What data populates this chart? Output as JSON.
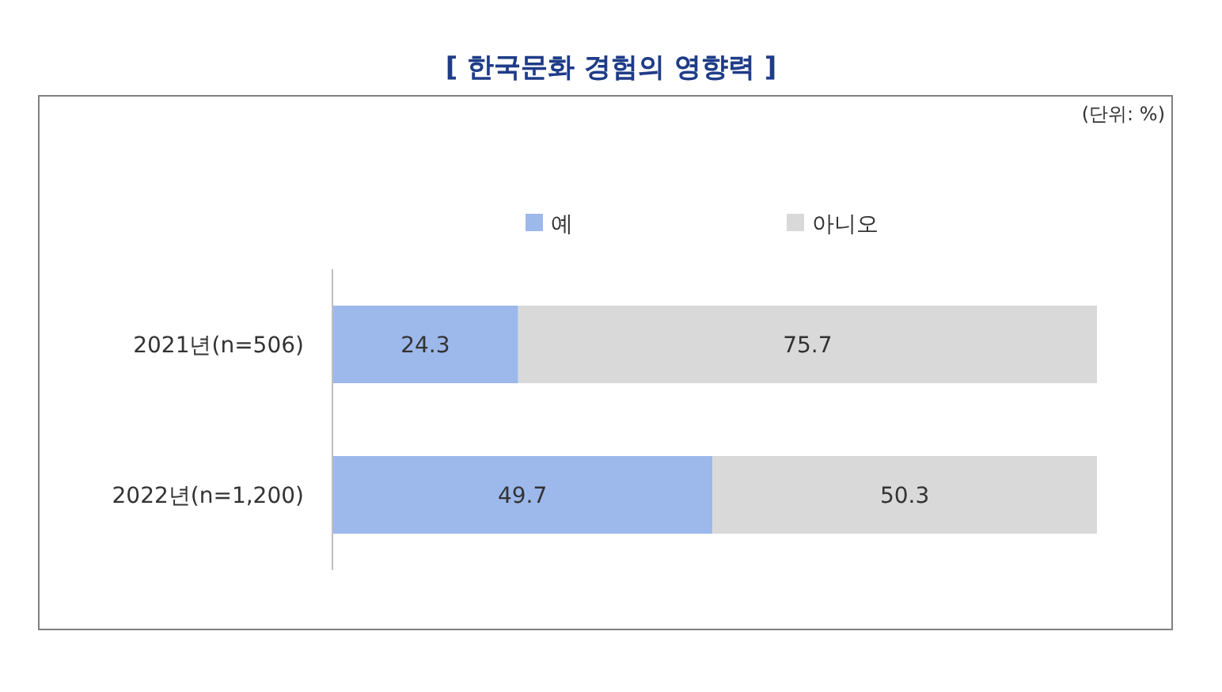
{
  "chart_data": {
    "type": "bar",
    "orientation": "horizontal",
    "stacked": true,
    "title": "[ 한국문화 경험의 영향력 ]",
    "annotations": [
      "(단위: %)"
    ],
    "categories": [
      "2021년(n=506)",
      "2022년(n=1,200)"
    ],
    "series": [
      {
        "name": "예",
        "color": "#9db8eb",
        "values": [
          24.3,
          49.7
        ]
      },
      {
        "name": "아니오",
        "color": "#d9d9d9",
        "values": [
          75.7,
          50.3
        ]
      }
    ],
    "data_labels": true,
    "legend": "top"
  }
}
